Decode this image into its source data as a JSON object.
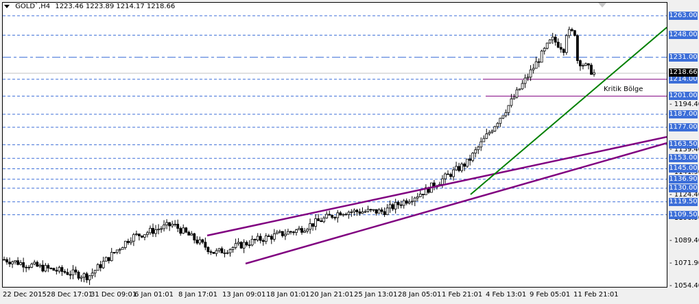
{
  "header": {
    "symbol": "GOLD`,H4",
    "ohlc": "1223.46 1223.89 1214.17 1218.66"
  },
  "annotation": {
    "label": "Kritik Bölge"
  },
  "colors": {
    "grid_dash": "#3c6ed8",
    "badge_bg": "#3c6ed8",
    "trend_channel": "#800080",
    "green_trendline": "#008000",
    "critical_zone": "#800080",
    "current_price_line": "#c0c0c0"
  },
  "y_axis": {
    "ticks": [
      "1194.40",
      "1159.40",
      "1141.90",
      "1124.40",
      "1106.90",
      "1089.40",
      "1071.90",
      "1054.40"
    ],
    "levels": [
      "1263.00",
      "1248.00",
      "1231.00",
      "1214.00",
      "1201.00",
      "1187.00",
      "1177.00",
      "1163.50",
      "1153.00",
      "1145.00",
      "1136.90",
      "1130.00",
      "1119.50",
      "1109.50"
    ],
    "current_price": "1218.66"
  },
  "x_axis": {
    "ticks": [
      "22 Dec 2015",
      "28 Dec 17:01",
      "31 Dec 09:01",
      "6 Jan 01:01",
      "8 Jan 17:01",
      "13 Jan 09:01",
      "18 Jan 01:01",
      "20 Jan 21:01",
      "25 Jan 13:01",
      "28 Jan 05:01",
      "1 Feb 21:01",
      "4 Feb 13:01",
      "9 Feb 05:01",
      "11 Feb 21:01"
    ]
  },
  "chart_data": {
    "type": "candlestick",
    "title": "GOLD`,H4",
    "last_bar": {
      "open": 1223.46,
      "high": 1223.89,
      "low": 1214.17,
      "close": 1218.66
    },
    "xlabel": "",
    "ylabel": "",
    "ylim": [
      1054.4,
      1270.0
    ],
    "x_ticks": [
      "22 Dec 2015",
      "28 Dec 17:01",
      "31 Dec 09:01",
      "6 Jan 01:01",
      "8 Jan 17:01",
      "13 Jan 09:01",
      "18 Jan 01:01",
      "20 Jan 21:01",
      "25 Jan 13:01",
      "28 Jan 05:01",
      "1 Feb 21:01",
      "4 Feb 13:01",
      "9 Feb 05:01",
      "11 Feb 21:01"
    ],
    "y_ticks": [
      1194.4,
      1159.4,
      1141.9,
      1124.4,
      1106.9,
      1089.4,
      1071.9,
      1054.4
    ],
    "horizontal_levels": [
      1263.0,
      1248.0,
      1231.0,
      1214.0,
      1201.0,
      1187.0,
      1177.0,
      1163.5,
      1153.0,
      1145.0,
      1136.9,
      1130.0,
      1119.5,
      1109.5
    ],
    "critical_zone": {
      "label": "Kritik Bölge",
      "upper": 1214.0,
      "lower": 1201.0
    },
    "trendlines": [
      {
        "name": "channel-upper",
        "from": [
          "8 Jan 17:01",
          1095
        ],
        "to": [
          "right-edge",
          1168
        ],
        "color": "#800080"
      },
      {
        "name": "channel-lower",
        "from": [
          "13 Jan 09:01",
          1073
        ],
        "to": [
          "right-edge",
          1162
        ],
        "color": "#800080"
      },
      {
        "name": "green-support",
        "from": [
          "1 Feb 21:01",
          1122
        ],
        "to": [
          "right-edge",
          1255
        ],
        "color": "#008000"
      }
    ],
    "price_path_approx": [
      {
        "x": "22 Dec 2015",
        "close": 1075
      },
      {
        "x": "28 Dec 17:01",
        "close": 1068
      },
      {
        "x": "31 Dec 09:01",
        "close": 1062
      },
      {
        "x": "6 Jan 01:01",
        "close": 1092
      },
      {
        "x": "8 Jan 17:01",
        "close": 1102
      },
      {
        "x": "13 Jan 09:01",
        "close": 1080
      },
      {
        "x": "18 Jan 01:01",
        "close": 1090
      },
      {
        "x": "20 Jan 21:01",
        "close": 1098
      },
      {
        "x": "25 Jan 13:01",
        "close": 1112
      },
      {
        "x": "28 Jan 05:01",
        "close": 1112
      },
      {
        "x": "1 Feb 21:01",
        "close": 1128
      },
      {
        "x": "4 Feb 13:01",
        "close": 1150
      },
      {
        "x": "9 Feb 05:01",
        "close": 1195
      },
      {
        "x": "11 Feb 21:01",
        "close": 1245
      },
      {
        "x": "last",
        "close": 1218.66
      }
    ]
  }
}
